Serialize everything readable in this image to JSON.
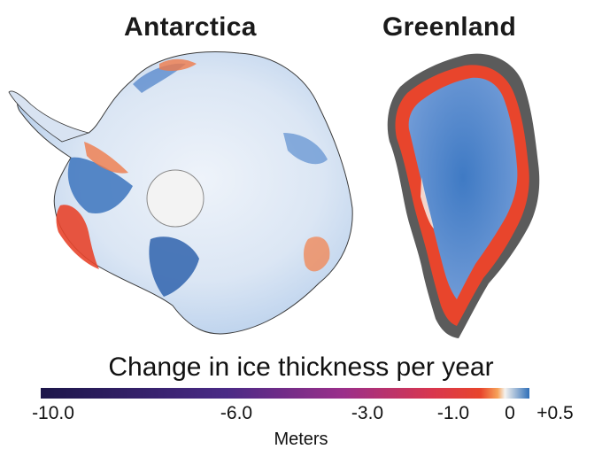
{
  "maps": {
    "antarctica_title": "Antarctica",
    "greenland_title": "Greenland"
  },
  "legend": {
    "title": "Change in ice thickness per year",
    "units": "Meters",
    "ticks": [
      "-10.0",
      "-6.0",
      "-3.0",
      "-1.0",
      "0",
      "+0.5"
    ],
    "scale_min": -10.0,
    "scale_max": 0.5,
    "colors": {
      "thinning_extreme": "#1c1649",
      "thinning_strong": "#6a2a8f",
      "thinning_moderate": "#c23a6a",
      "thinning_mild": "#e8452c",
      "thinning_slight": "#f6a25a",
      "no_change": "#f4f2ef",
      "thickening": "#2f6fb8"
    }
  }
}
